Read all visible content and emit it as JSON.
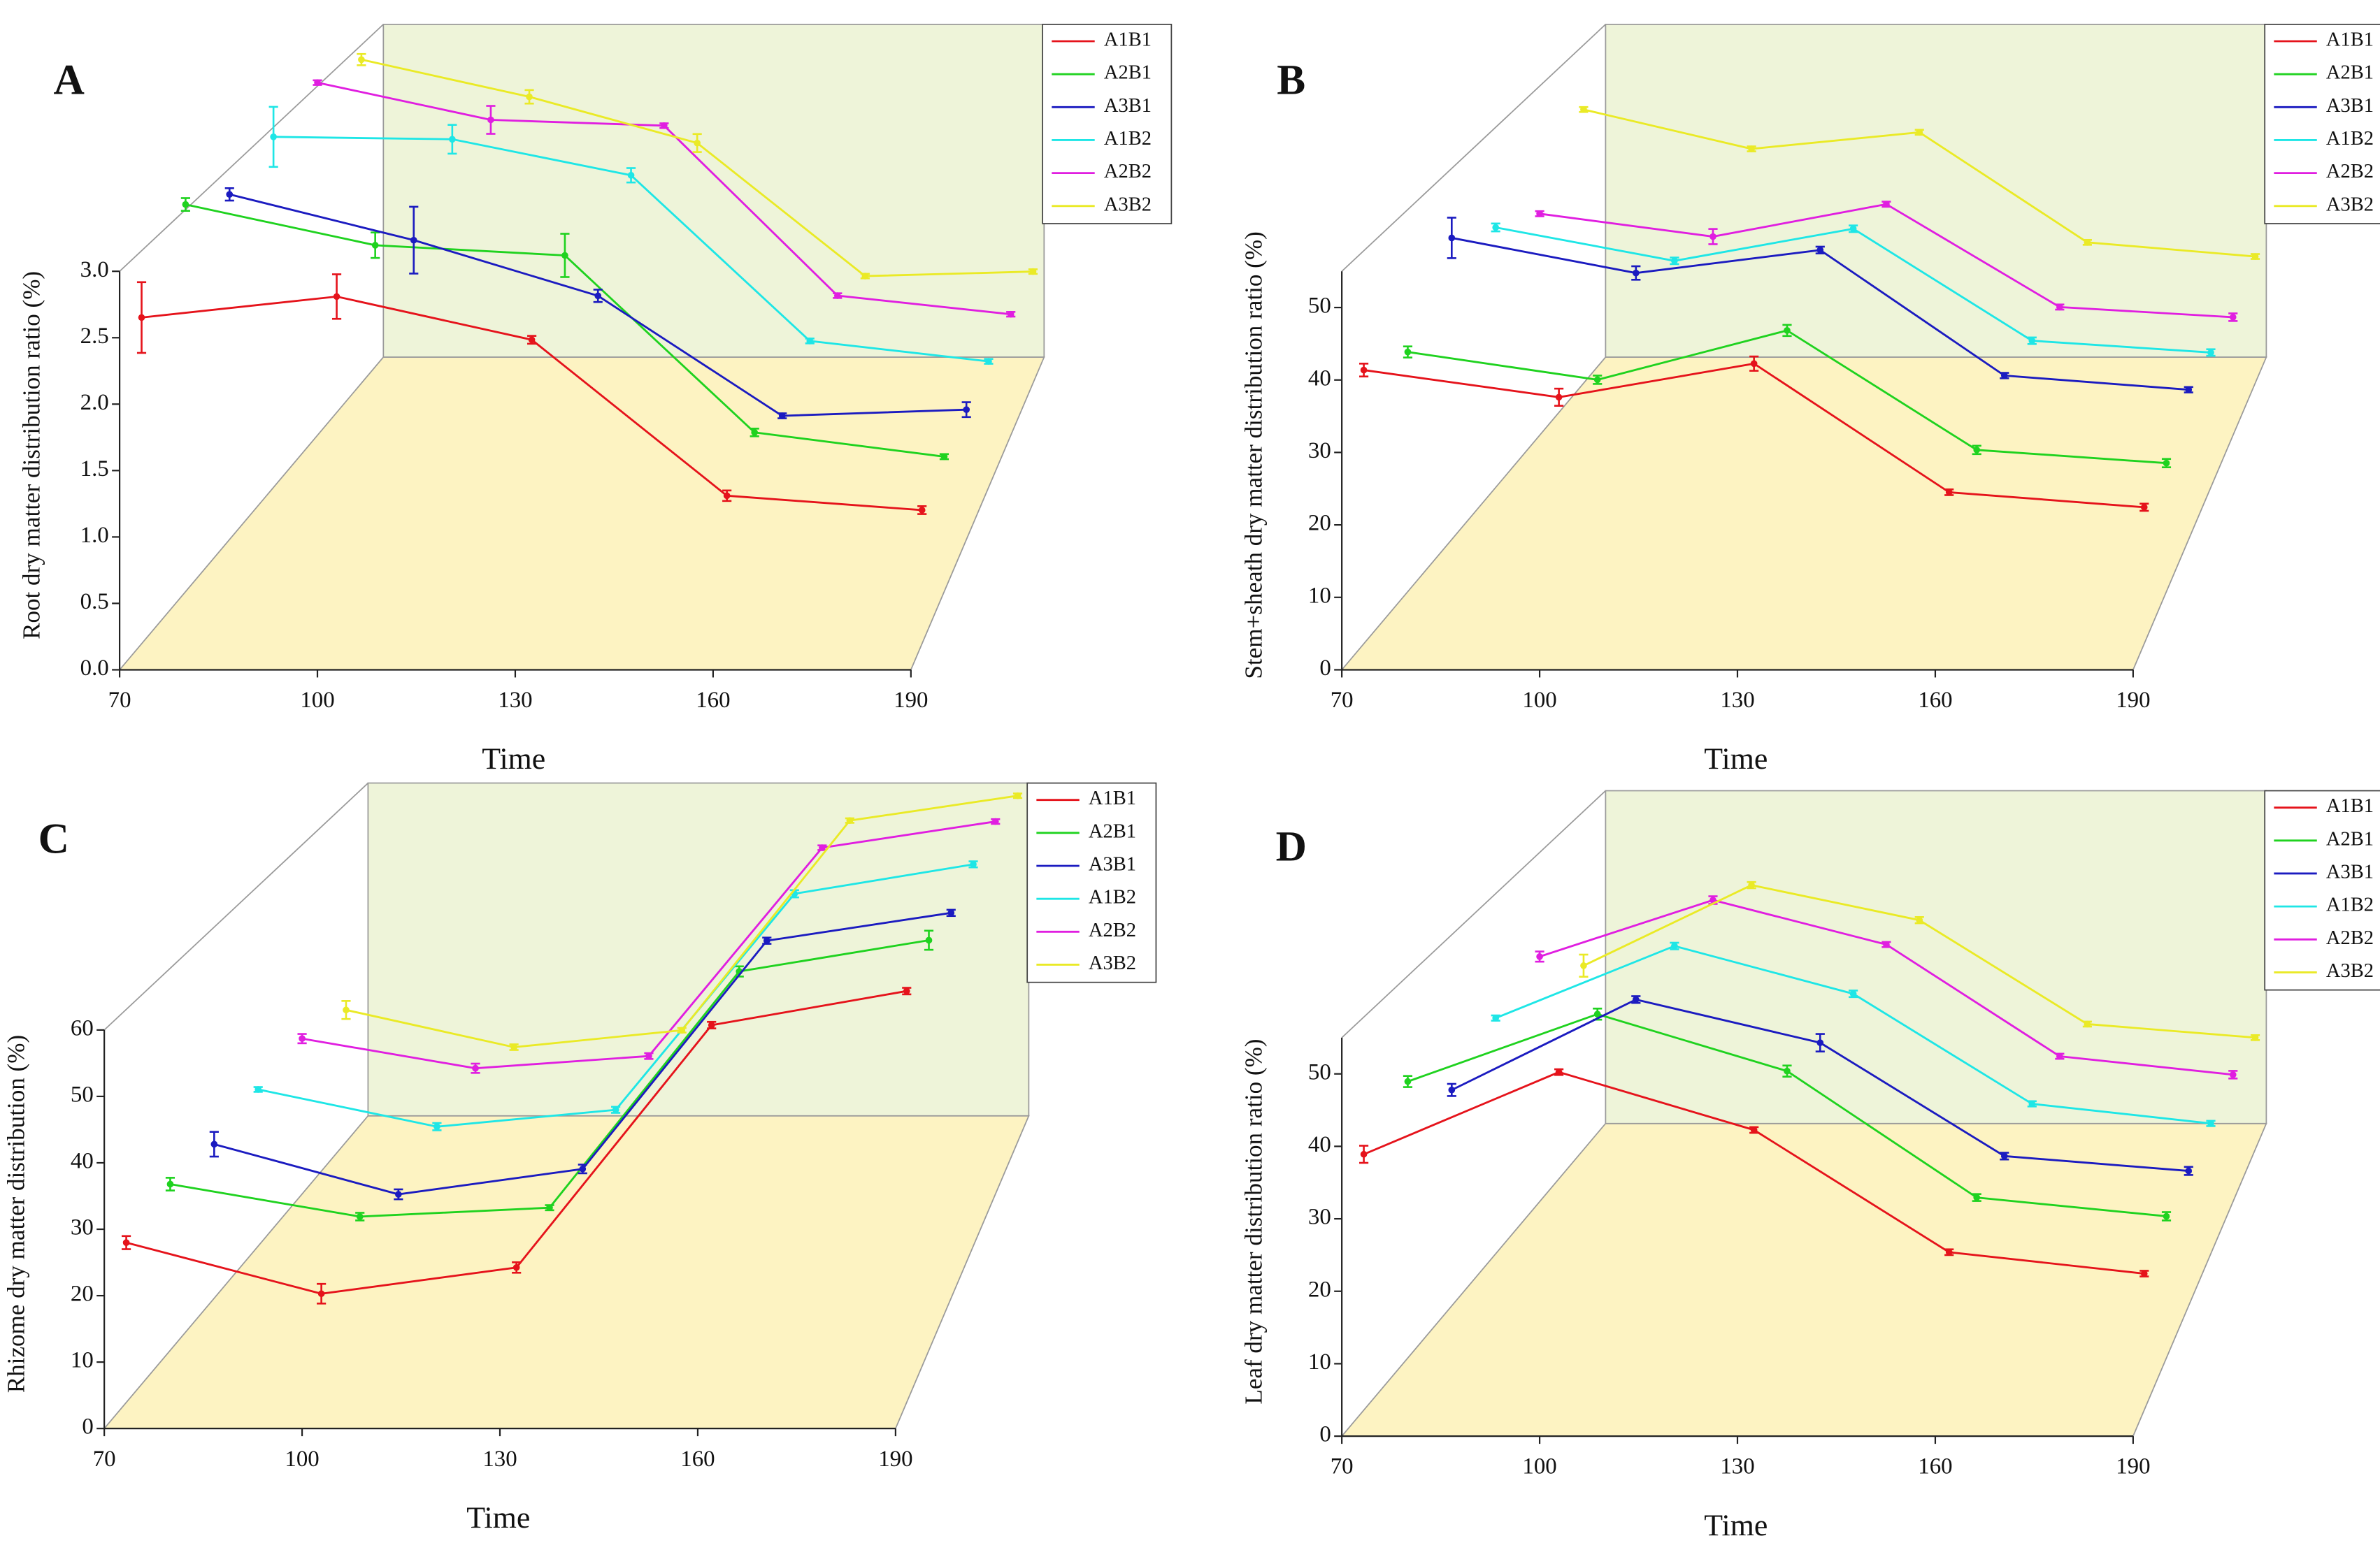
{
  "chart_data": [
    {
      "type": "line",
      "label": "A",
      "xlabel": "Time",
      "ylabel": "Root dry matter distribution ratio (%)",
      "x": [
        70,
        100,
        130,
        160,
        190
      ],
      "xlim": [
        70,
        190
      ],
      "xticks": [
        70,
        100,
        130,
        160,
        190
      ],
      "ylim": [
        0,
        3
      ],
      "yticks": [
        {
          "value": 0,
          "label": "0.0"
        },
        0.5,
        {
          "value": 1,
          "label": "1.0"
        },
        1.5,
        {
          "value": 2,
          "label": "2.0"
        },
        2.5,
        {
          "value": 3,
          "label": "3.0"
        }
      ],
      "series": [
        {
          "name": "A1B1",
          "color": "#e5131b",
          "values": [
            2.49,
            2.65,
            2.32,
            1.13,
            1.02
          ],
          "errors": [
            0.27,
            0.17,
            0.03,
            0.04,
            0.03
          ]
        },
        {
          "name": "A2B1",
          "color": "#1fd21f",
          "values": [
            3.04,
            2.72,
            2.64,
            1.25,
            1.06
          ],
          "errors": [
            0.05,
            0.1,
            0.17,
            0.03,
            0.02
          ]
        },
        {
          "name": "A3B1",
          "color": "#1b1bc0",
          "values": [
            2.79,
            2.42,
            1.97,
            1.0,
            1.05
          ],
          "errors": [
            0.05,
            0.27,
            0.05,
            0.02,
            0.06
          ]
        },
        {
          "name": "A1B2",
          "color": "#1ee6e6",
          "values": [
            2.92,
            2.9,
            2.6,
            1.22,
            1.05
          ],
          "errors": [
            0.25,
            0.12,
            0.06,
            0.02,
            0.02
          ]
        },
        {
          "name": "A2B2",
          "color": "#e01ee0",
          "values": [
            3.03,
            2.71,
            2.66,
            1.2,
            1.04
          ],
          "errors": [
            0.02,
            0.12,
            0.02,
            0.02,
            0.02
          ]
        },
        {
          "name": "A3B2",
          "color": "#eaea26",
          "values": [
            2.87,
            2.54,
            2.13,
            0.95,
            0.99
          ],
          "errors": [
            0.05,
            0.06,
            0.08,
            0.02,
            0.02
          ]
        }
      ]
    },
    {
      "type": "line",
      "label": "B",
      "xlabel": "Time",
      "ylabel": "Stem+sheath dry matter distribution ratio (%)",
      "x": [
        70,
        100,
        130,
        160,
        190
      ],
      "xlim": [
        70,
        190
      ],
      "xticks": [
        70,
        100,
        130,
        160,
        190
      ],
      "ylim": [
        0,
        55
      ],
      "yticks": [
        0,
        10,
        20,
        30,
        40,
        50
      ],
      "series": [
        {
          "name": "A1B1",
          "color": "#e5131b",
          "values": [
            38.3,
            34.5,
            39.2,
            21.2,
            19.1
          ],
          "errors": [
            0.9,
            1.2,
            1.0,
            0.4,
            0.5
          ]
        },
        {
          "name": "A2B1",
          "color": "#1fd21f",
          "values": [
            34.5,
            30.5,
            37.6,
            20.4,
            18.5
          ],
          "errors": [
            0.8,
            0.6,
            0.8,
            0.6,
            0.6
          ]
        },
        {
          "name": "A3B1",
          "color": "#1b1bc0",
          "values": [
            44.7,
            39.5,
            42.9,
            24.3,
            22.2
          ],
          "errors": [
            3.0,
            1.0,
            0.5,
            0.4,
            0.4
          ]
        },
        {
          "name": "A1B2",
          "color": "#1ee6e6",
          "values": [
            39.7,
            34.6,
            39.5,
            22.4,
            20.6
          ],
          "errors": [
            0.6,
            0.5,
            0.5,
            0.5,
            0.5
          ]
        },
        {
          "name": "A2B2",
          "color": "#e01ee0",
          "values": [
            34.9,
            31.3,
            36.4,
            20.2,
            18.6
          ],
          "errors": [
            0.4,
            1.2,
            0.4,
            0.4,
            0.6
          ]
        },
        {
          "name": "A3B2",
          "color": "#eaea26",
          "values": [
            44.5,
            38.1,
            40.8,
            22.9,
            20.6
          ],
          "errors": [
            0.4,
            0.4,
            0.4,
            0.4,
            0.4
          ]
        }
      ]
    },
    {
      "type": "line",
      "label": "C",
      "xlabel": "Time",
      "ylabel": "Rhizome dry matter distribution (%)",
      "x": [
        70,
        100,
        130,
        160,
        190
      ],
      "xlim": [
        70,
        190
      ],
      "xticks": [
        70,
        100,
        130,
        160,
        190
      ],
      "ylim": [
        0,
        60
      ],
      "yticks": [
        0,
        10,
        20,
        30,
        40,
        50,
        60
      ],
      "series": [
        {
          "name": "A1B1",
          "color": "#e5131b",
          "values": [
            24.4,
            16.6,
            20.6,
            57.6,
            62.8
          ],
          "errors": [
            1.0,
            1.5,
            0.8,
            0.5,
            0.5
          ]
        },
        {
          "name": "A2B1",
          "color": "#1fd21f",
          "values": [
            26.1,
            21.0,
            22.4,
            59.5,
            64.4
          ],
          "errors": [
            1.0,
            0.6,
            0.4,
            0.8,
            1.5
          ]
        },
        {
          "name": "A3B1",
          "color": "#1b1bc0",
          "values": [
            24.9,
            16.8,
            20.9,
            57.8,
            62.3
          ],
          "errors": [
            2.0,
            0.8,
            0.7,
            0.5,
            0.5
          ]
        },
        {
          "name": "A1B2",
          "color": "#1ee6e6",
          "values": [
            26.1,
            19.9,
            22.7,
            58.7,
            63.6
          ],
          "errors": [
            0.4,
            0.6,
            0.5,
            0.6,
            0.5
          ]
        },
        {
          "name": "A2B2",
          "color": "#e01ee0",
          "values": [
            26.7,
            21.6,
            23.7,
            59.5,
            64.0
          ],
          "errors": [
            0.8,
            0.8,
            0.5,
            0.4,
            0.4
          ]
        },
        {
          "name": "A3B2",
          "color": "#eaea26",
          "values": [
            23.4,
            16.8,
            19.8,
            57.0,
            61.4
          ],
          "errors": [
            1.6,
            0.5,
            0.4,
            0.4,
            0.4
          ]
        }
      ]
    },
    {
      "type": "line",
      "label": "D",
      "xlabel": "Time",
      "ylabel": "Leaf dry matter distribution ratio (%)",
      "x": [
        70,
        100,
        130,
        160,
        190
      ],
      "xlim": [
        70,
        190
      ],
      "xticks": [
        70,
        100,
        130,
        160,
        190
      ],
      "ylim": [
        0,
        55
      ],
      "yticks": [
        0,
        10,
        20,
        30,
        40,
        50
      ],
      "series": [
        {
          "name": "A1B1",
          "color": "#e5131b",
          "values": [
            35.8,
            47.3,
            39.2,
            22.1,
            19.1
          ],
          "errors": [
            1.2,
            0.4,
            0.4,
            0.4,
            0.4
          ]
        },
        {
          "name": "A2B1",
          "color": "#1fd21f",
          "values": [
            39.8,
            49.5,
            41.3,
            23.1,
            20.4
          ],
          "errors": [
            0.8,
            0.8,
            0.8,
            0.5,
            0.6
          ]
        },
        {
          "name": "A3B1",
          "color": "#1b1bc0",
          "values": [
            32.0,
            45.4,
            39.0,
            22.2,
            20.0
          ],
          "errors": [
            0.9,
            0.5,
            1.3,
            0.5,
            0.6
          ]
        },
        {
          "name": "A1B2",
          "color": "#1ee6e6",
          "values": [
            36.0,
            47.0,
            39.7,
            22.9,
            19.9
          ],
          "errors": [
            0.4,
            0.5,
            0.5,
            0.4,
            0.4
          ]
        },
        {
          "name": "A2B2",
          "color": "#e01ee0",
          "values": [
            38.6,
            47.5,
            40.5,
            22.9,
            20.0
          ],
          "errors": [
            0.8,
            0.6,
            0.4,
            0.4,
            0.6
          ]
        },
        {
          "name": "A3B2",
          "color": "#eaea26",
          "values": [
            29.9,
            43.0,
            37.3,
            20.4,
            18.2
          ],
          "errors": [
            1.8,
            0.5,
            0.5,
            0.4,
            0.4
          ]
        }
      ]
    }
  ]
}
